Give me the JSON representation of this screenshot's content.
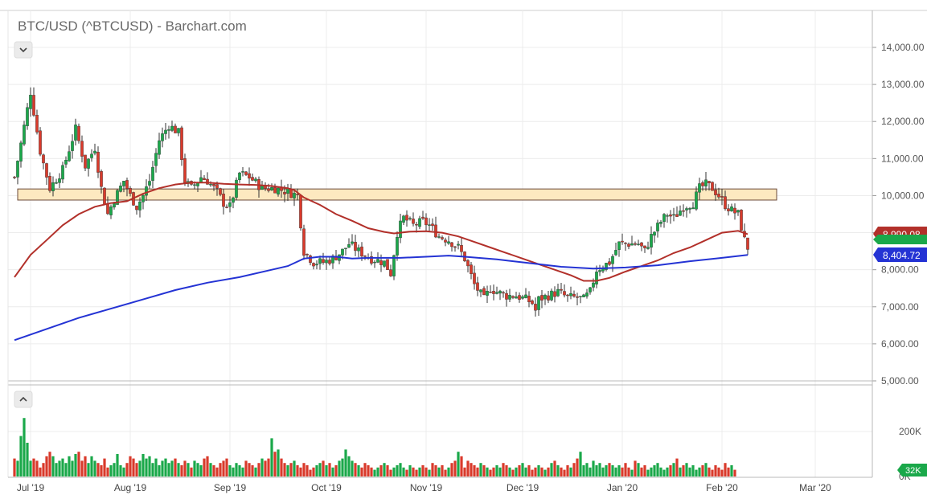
{
  "chart_data": {
    "type": "candlestick",
    "title": "BTC/USD (^BTCUSD) - Barchart.com",
    "price_axis": {
      "ticks": [
        "14,000.00",
        "13,000.00",
        "12,000.00",
        "11,000.00",
        "10,000.00",
        "9,000.00",
        "8,000.00",
        "7,000.00",
        "6,000.00",
        "5,000.00"
      ],
      "tick_values": [
        14000,
        13000,
        12000,
        11000,
        10000,
        9000,
        8000,
        7000,
        6000,
        5000
      ],
      "ylim": [
        5000,
        14650
      ]
    },
    "volume_axis": {
      "ticks": [
        "200K",
        "0K"
      ],
      "tick_values": [
        200000,
        0
      ],
      "ylim": [
        0,
        310000
      ]
    },
    "x_axis": {
      "ticks": [
        "Jul '19",
        "Aug '19",
        "Sep '19",
        "Oct '19",
        "Nov '19",
        "Dec '19",
        "Jan '20",
        "Feb '20",
        "Mar '20"
      ],
      "tick_days": [
        0,
        31,
        62,
        92,
        123,
        153,
        184,
        215,
        244
      ]
    },
    "last_price_label": "8,990.08",
    "ma_blue_label": "8,404.72",
    "last_volume_label": "32K",
    "resistance_zone": {
      "low": 9880,
      "high": 10180,
      "start_day": -4,
      "end_day": 232
    },
    "colors": {
      "up": "#1aa84a",
      "down": "#d93a2b",
      "ma_red": "#b2302a",
      "ma_blue": "#2433d4",
      "zone": "#fde9c0"
    },
    "price_anchors": [
      [
        -5,
        10500
      ],
      [
        -3,
        11400
      ],
      [
        0,
        12800
      ],
      [
        3,
        11200
      ],
      [
        6,
        10200
      ],
      [
        10,
        10700
      ],
      [
        14,
        11800
      ],
      [
        17,
        10800
      ],
      [
        20,
        11300
      ],
      [
        22,
        10200
      ],
      [
        24,
        9500
      ],
      [
        26,
        9900
      ],
      [
        29,
        10400
      ],
      [
        31,
        10000
      ],
      [
        33,
        9700
      ],
      [
        35,
        10000
      ],
      [
        37,
        10400
      ],
      [
        40,
        11500
      ],
      [
        43,
        11900
      ],
      [
        46,
        11700
      ],
      [
        48,
        10400
      ],
      [
        50,
        10200
      ],
      [
        53,
        10500
      ],
      [
        55,
        10400
      ],
      [
        58,
        10100
      ],
      [
        60,
        9800
      ],
      [
        62,
        9700
      ],
      [
        65,
        10600
      ],
      [
        68,
        10500
      ],
      [
        72,
        10200
      ],
      [
        76,
        10200
      ],
      [
        80,
        10100
      ],
      [
        83,
        10000
      ],
      [
        85,
        8500
      ],
      [
        88,
        8200
      ],
      [
        91,
        8200
      ],
      [
        94,
        8300
      ],
      [
        97,
        8500
      ],
      [
        99,
        8700
      ],
      [
        102,
        8500
      ],
      [
        106,
        8300
      ],
      [
        110,
        8200
      ],
      [
        112,
        7900
      ],
      [
        114,
        9000
      ],
      [
        116,
        9400
      ],
      [
        119,
        9200
      ],
      [
        122,
        9300
      ],
      [
        124,
        9200
      ],
      [
        127,
        8900
      ],
      [
        130,
        8800
      ],
      [
        133,
        8600
      ],
      [
        135,
        8300
      ],
      [
        138,
        7600
      ],
      [
        141,
        7200
      ],
      [
        143,
        7500
      ],
      [
        145,
        7400
      ],
      [
        148,
        7300
      ],
      [
        151,
        7300
      ],
      [
        154,
        7200
      ],
      [
        156,
        7100
      ],
      [
        157,
        6900
      ],
      [
        158,
        7200
      ],
      [
        161,
        7300
      ],
      [
        164,
        7400
      ],
      [
        167,
        7250
      ],
      [
        170,
        7250
      ],
      [
        172,
        7200
      ],
      [
        174,
        7400
      ],
      [
        176,
        8000
      ],
      [
        178,
        8100
      ],
      [
        180,
        8200
      ],
      [
        183,
        8700
      ],
      [
        186,
        8700
      ],
      [
        189,
        8700
      ],
      [
        191,
        8500
      ],
      [
        193,
        8900
      ],
      [
        196,
        9300
      ],
      [
        198,
        9500
      ],
      [
        200,
        9400
      ],
      [
        203,
        9700
      ],
      [
        206,
        9800
      ],
      [
        208,
        10200
      ],
      [
        210,
        10300
      ],
      [
        212,
        10200
      ],
      [
        214,
        10000
      ],
      [
        216,
        9750
      ],
      [
        218,
        9600
      ],
      [
        220,
        9500
      ],
      [
        222,
        8800
      ],
      [
        223,
        8600
      ]
    ],
    "ma_red": [
      [
        -5,
        7800
      ],
      [
        0,
        8400
      ],
      [
        5,
        8800
      ],
      [
        10,
        9200
      ],
      [
        15,
        9500
      ],
      [
        20,
        9700
      ],
      [
        25,
        9800
      ],
      [
        30,
        9850
      ],
      [
        35,
        10050
      ],
      [
        40,
        10200
      ],
      [
        45,
        10300
      ],
      [
        50,
        10350
      ],
      [
        55,
        10350
      ],
      [
        60,
        10320
      ],
      [
        65,
        10300
      ],
      [
        70,
        10290
      ],
      [
        75,
        10260
      ],
      [
        80,
        10200
      ],
      [
        82,
        10150
      ],
      [
        85,
        9950
      ],
      [
        90,
        9750
      ],
      [
        95,
        9500
      ],
      [
        100,
        9320
      ],
      [
        105,
        9120
      ],
      [
        110,
        9020
      ],
      [
        113,
        8980
      ],
      [
        118,
        9030
      ],
      [
        123,
        9040
      ],
      [
        128,
        9000
      ],
      [
        133,
        8900
      ],
      [
        138,
        8750
      ],
      [
        143,
        8600
      ],
      [
        148,
        8450
      ],
      [
        153,
        8300
      ],
      [
        158,
        8150
      ],
      [
        163,
        8000
      ],
      [
        168,
        7850
      ],
      [
        172,
        7700
      ],
      [
        176,
        7700
      ],
      [
        180,
        7780
      ],
      [
        185,
        7950
      ],
      [
        190,
        8100
      ],
      [
        195,
        8250
      ],
      [
        200,
        8450
      ],
      [
        205,
        8600
      ],
      [
        210,
        8800
      ],
      [
        215,
        9000
      ],
      [
        220,
        9050
      ],
      [
        223,
        8960
      ]
    ],
    "ma_blue": [
      [
        -5,
        6100
      ],
      [
        5,
        6400
      ],
      [
        15,
        6700
      ],
      [
        25,
        6950
      ],
      [
        35,
        7200
      ],
      [
        45,
        7450
      ],
      [
        55,
        7650
      ],
      [
        65,
        7800
      ],
      [
        75,
        8000
      ],
      [
        80,
        8100
      ],
      [
        85,
        8300
      ],
      [
        90,
        8350
      ],
      [
        95,
        8350
      ],
      [
        100,
        8300
      ],
      [
        105,
        8320
      ],
      [
        115,
        8320
      ],
      [
        125,
        8360
      ],
      [
        130,
        8380
      ],
      [
        135,
        8350
      ],
      [
        145,
        8280
      ],
      [
        155,
        8180
      ],
      [
        165,
        8080
      ],
      [
        175,
        8030
      ],
      [
        185,
        8060
      ],
      [
        195,
        8120
      ],
      [
        205,
        8230
      ],
      [
        215,
        8320
      ],
      [
        223,
        8400
      ]
    ],
    "volume_bars": [
      80000,
      70000,
      180000,
      260000,
      150000,
      70000,
      80000,
      70000,
      40000,
      60000,
      90000,
      110000,
      90000,
      60000,
      70000,
      80000,
      60000,
      90000,
      70000,
      100000,
      110000,
      70000,
      90000,
      60000,
      90000,
      70000,
      60000,
      50000,
      80000,
      40000,
      50000,
      60000,
      100000,
      50000,
      40000,
      60000,
      90000,
      80000,
      60000,
      70000,
      100000,
      80000,
      90000,
      60000,
      80000,
      50000,
      70000,
      80000,
      60000,
      70000,
      80000,
      60000,
      50000,
      70000,
      60000,
      40000,
      70000,
      60000,
      50000,
      80000,
      90000,
      60000,
      50000,
      40000,
      60000,
      70000,
      80000,
      50000,
      40000,
      60000,
      50000,
      40000,
      70000,
      60000,
      50000,
      40000,
      60000,
      80000,
      70000,
      80000,
      170000,
      110000,
      120000,
      80000,
      60000,
      50000,
      60000,
      70000,
      50000,
      40000,
      60000,
      50000,
      30000,
      40000,
      50000,
      60000,
      70000,
      50000,
      60000,
      40000,
      50000,
      70000,
      80000,
      120000,
      90000,
      70000,
      60000,
      50000,
      40000,
      60000,
      50000,
      40000,
      30000,
      40000,
      50000,
      60000,
      50000,
      30000,
      40000,
      50000,
      60000,
      40000,
      30000,
      50000,
      40000,
      30000,
      40000,
      50000,
      40000,
      30000,
      60000,
      50000,
      40000,
      50000,
      30000,
      40000,
      60000,
      70000,
      110000,
      90000,
      40000,
      70000,
      60000,
      50000,
      40000,
      60000,
      50000,
      40000,
      30000,
      40000,
      50000,
      40000,
      60000,
      50000,
      40000,
      30000,
      40000,
      50000,
      60000,
      40000,
      50000,
      30000,
      40000,
      50000,
      40000,
      30000,
      40000,
      60000,
      70000,
      50000,
      40000,
      30000,
      50000,
      40000,
      60000,
      80000,
      110000,
      50000,
      60000,
      40000,
      70000,
      50000,
      60000,
      40000,
      50000,
      60000,
      50000,
      40000,
      50000,
      40000,
      60000,
      40000,
      30000,
      70000,
      60000,
      40000,
      50000,
      30000,
      40000,
      50000,
      60000,
      40000,
      30000,
      40000,
      50000,
      60000,
      80000,
      40000,
      50000,
      60000,
      40000,
      50000,
      30000,
      40000,
      50000,
      60000,
      40000,
      30000,
      50000,
      40000,
      30000,
      60000,
      40000,
      50000,
      30000
    ]
  },
  "ui": {
    "collapse_price_icon": "chevron-down-icon",
    "collapse_volume_icon": "chevron-up-icon"
  }
}
